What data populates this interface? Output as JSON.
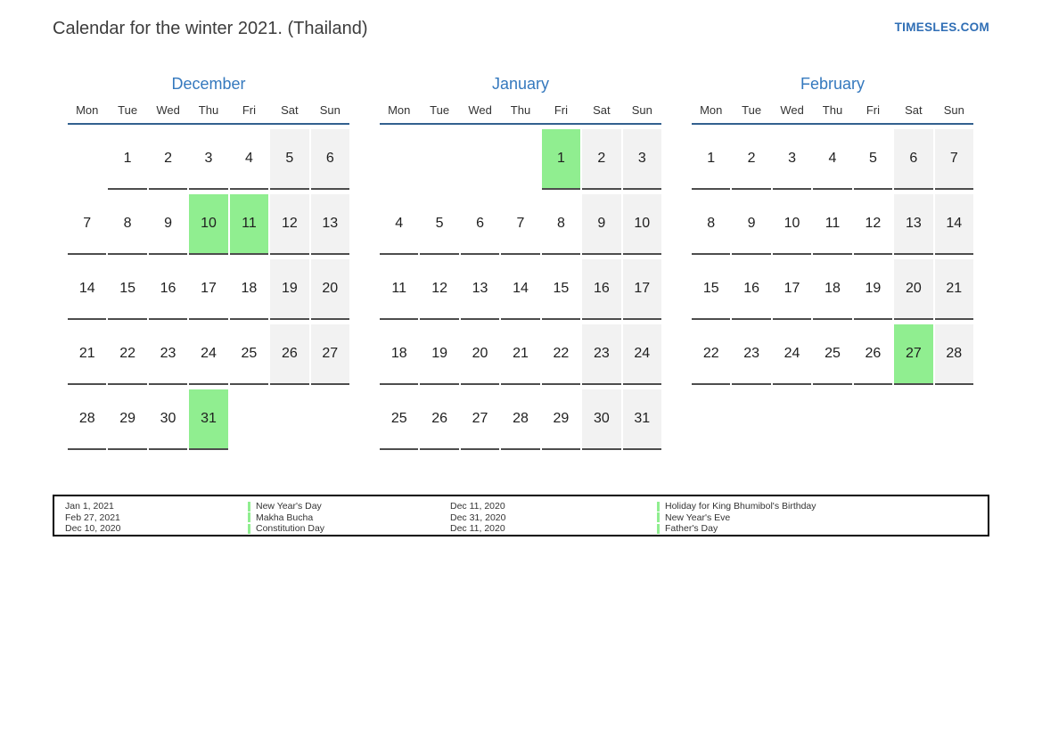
{
  "page": {
    "title": "Calendar for the winter 2021. (Thailand)",
    "site_link": "TIMESLES.COM"
  },
  "colors": {
    "title_blue": "#3579be",
    "divider_blue": "#33618f",
    "holiday_green": "#90ee90",
    "weekend_gray": "#f2f2f2",
    "underline_gray": "#4d4d4d",
    "link_blue": "#2f6eb5"
  },
  "weekday_labels": [
    "Mon",
    "Tue",
    "Wed",
    "Thu",
    "Fri",
    "Sat",
    "Sun"
  ],
  "months": [
    {
      "name": "December",
      "weeks": [
        [
          null,
          1,
          2,
          3,
          4,
          5,
          6
        ],
        [
          7,
          8,
          9,
          10,
          11,
          12,
          13
        ],
        [
          14,
          15,
          16,
          17,
          18,
          19,
          20
        ],
        [
          21,
          22,
          23,
          24,
          25,
          26,
          27
        ],
        [
          28,
          29,
          30,
          31,
          null,
          null,
          null
        ]
      ],
      "holidays": [
        10,
        11,
        31
      ]
    },
    {
      "name": "January",
      "weeks": [
        [
          null,
          null,
          null,
          null,
          1,
          2,
          3
        ],
        [
          4,
          5,
          6,
          7,
          8,
          9,
          10
        ],
        [
          11,
          12,
          13,
          14,
          15,
          16,
          17
        ],
        [
          18,
          19,
          20,
          21,
          22,
          23,
          24
        ],
        [
          25,
          26,
          27,
          28,
          29,
          30,
          31
        ]
      ],
      "holidays": [
        1
      ]
    },
    {
      "name": "February",
      "weeks": [
        [
          1,
          2,
          3,
          4,
          5,
          6,
          7
        ],
        [
          8,
          9,
          10,
          11,
          12,
          13,
          14
        ],
        [
          15,
          16,
          17,
          18,
          19,
          20,
          21
        ],
        [
          22,
          23,
          24,
          25,
          26,
          27,
          28
        ]
      ],
      "holidays": [
        27
      ]
    }
  ],
  "legend": {
    "rows": [
      {
        "date_left": "Jan 1, 2021",
        "name_left": "New Year's Day",
        "date_right": "Dec 11, 2020",
        "name_right": "Holiday for King Bhumibol's Birthday"
      },
      {
        "date_left": "Feb 27, 2021",
        "name_left": "Makha Bucha",
        "date_right": "Dec 31, 2020",
        "name_right": "New Year's Eve"
      },
      {
        "date_left": "Dec 10, 2020",
        "name_left": "Constitution Day",
        "date_right": "Dec 11, 2020",
        "name_right": "Father's Day"
      }
    ]
  }
}
